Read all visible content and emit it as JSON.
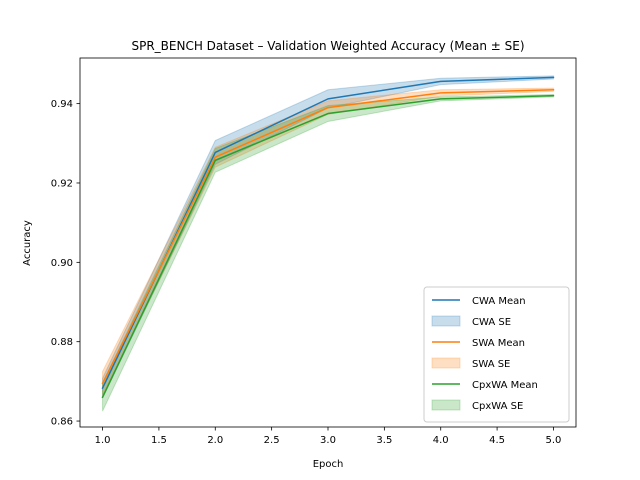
{
  "chart_data": {
    "type": "line",
    "title": "SPR_BENCH Dataset – Validation Weighted Accuracy (Mean ± SE)",
    "xlabel": "Epoch",
    "ylabel": "Accuracy",
    "xlim": [
      0.8,
      5.2
    ],
    "ylim": [
      0.8585,
      0.9515
    ],
    "xticks": [
      1.0,
      1.5,
      2.0,
      2.5,
      3.0,
      3.5,
      4.0,
      4.5,
      5.0
    ],
    "xtick_labels": [
      "1.0",
      "1.5",
      "2.0",
      "2.5",
      "3.0",
      "3.5",
      "4.0",
      "4.5",
      "5.0"
    ],
    "yticks": [
      0.86,
      0.88,
      0.9,
      0.92,
      0.94
    ],
    "ytick_labels": [
      "0.86",
      "0.88",
      "0.90",
      "0.92",
      "0.94"
    ],
    "legend_position": "lower-right",
    "x": [
      1,
      2,
      3,
      4,
      5
    ],
    "series": [
      {
        "name": "CWA Mean",
        "se_name": "CWA SE",
        "color": "#1f77b4",
        "mean": [
          0.8683,
          0.9277,
          0.9412,
          0.9456,
          0.9466
        ],
        "se": [
          0.0025,
          0.003,
          0.0023,
          0.0008,
          0.0004
        ]
      },
      {
        "name": "SWA Mean",
        "se_name": "SWA SE",
        "color": "#ff7f0e",
        "mean": [
          0.8695,
          0.9265,
          0.939,
          0.9427,
          0.9435
        ],
        "se": [
          0.003,
          0.0025,
          0.0017,
          0.0008,
          0.0004
        ]
      },
      {
        "name": "CpxWA Mean",
        "se_name": "CpxWA SE",
        "color": "#2ca02c",
        "mean": [
          0.866,
          0.9257,
          0.9375,
          0.9412,
          0.942
        ],
        "se": [
          0.0035,
          0.003,
          0.002,
          0.0005,
          0.0003
        ]
      }
    ]
  }
}
